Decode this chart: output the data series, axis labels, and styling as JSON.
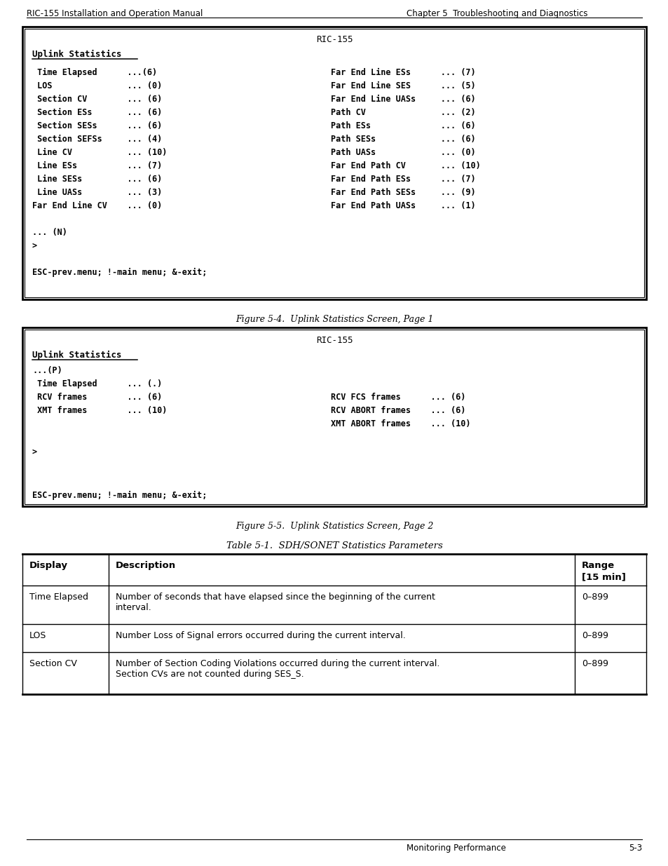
{
  "header_left": "RIC-155 Installation and Operation Manual",
  "header_right": "Chapter 5  Troubleshooting and Diagnostics",
  "footer_right": "Monitoring Performance",
  "footer_page": "5-3",
  "fig1_title": "RIC-155",
  "fig1_subtitle": "Uplink Statistics",
  "fig1_left_lines": [
    " Time Elapsed      ...(6)",
    " LOS               ... (0)",
    " Section CV        ... (6)",
    " Section ESs       ... (6)",
    " Section SESs      ... (6)",
    " Section SEFSs     ... (4)",
    " Line CV           ... (10)",
    " Line ESs          ... (7)",
    " Line SESs         ... (6)",
    " Line UASs         ... (3)",
    "Far End Line CV    ... (0)"
  ],
  "fig1_right_lines": [
    "Far End Line ESs      ... (7)",
    "Far End Line SES      ... (5)",
    "Far End Line UASs     ... (6)",
    "Path CV               ... (2)",
    "Path ESs              ... (6)",
    "Path SESs             ... (6)",
    "Path UASs             ... (0)",
    "Far End Path CV       ... (10)",
    "Far End Path ESs      ... (7)",
    "Far End Path SESs     ... (9)",
    "Far End Path UASs     ... (1)"
  ],
  "fig1_bottom_lines": [
    "... (N)",
    ">"
  ],
  "fig1_esc_line": "ESC-prev.menu; !-main menu; &-exit;",
  "fig1_caption": "Figure 5-4.  Uplink Statistics Screen, Page 1",
  "fig2_title": "RIC-155",
  "fig2_subtitle": "Uplink Statistics",
  "fig2_p_line": "...(P)",
  "fig2_time_line": " Time Elapsed      ... (.)",
  "fig2_left_lines": [
    " RCV frames        ... (6)",
    " XMT frames        ... (10)"
  ],
  "fig2_right_lines": [
    "RCV FCS frames      ... (6)",
    "RCV ABORT frames    ... (6)",
    "XMT ABORT frames    ... (10)"
  ],
  "fig2_gt_line": ">",
  "fig2_esc_line": "ESC-prev.menu; !-main menu; &-exit;",
  "fig2_caption": "Figure 5-5.  Uplink Statistics Screen, Page 2",
  "table_title": "Table 5-1.  SDH/SONET Statistics Parameters",
  "table_col_headers": [
    "Display",
    "Description",
    "Range\n[15 min]"
  ],
  "table_rows": [
    [
      "Time Elapsed",
      "Number of seconds that have elapsed since the beginning of the current\ninterval.",
      "0–899"
    ],
    [
      "LOS",
      "Number Loss of Signal errors occurred during the current interval.",
      "0–899"
    ],
    [
      "Section CV",
      "Number of Section Coding Violations occurred during the current interval.\nSection CVs are not counted during SES_S.",
      "0–899"
    ]
  ],
  "bg_color": "#ffffff",
  "mono_font": "DejaVu Sans Mono",
  "serif_font": "DejaVu Serif",
  "sans_font": "DejaVu Sans"
}
